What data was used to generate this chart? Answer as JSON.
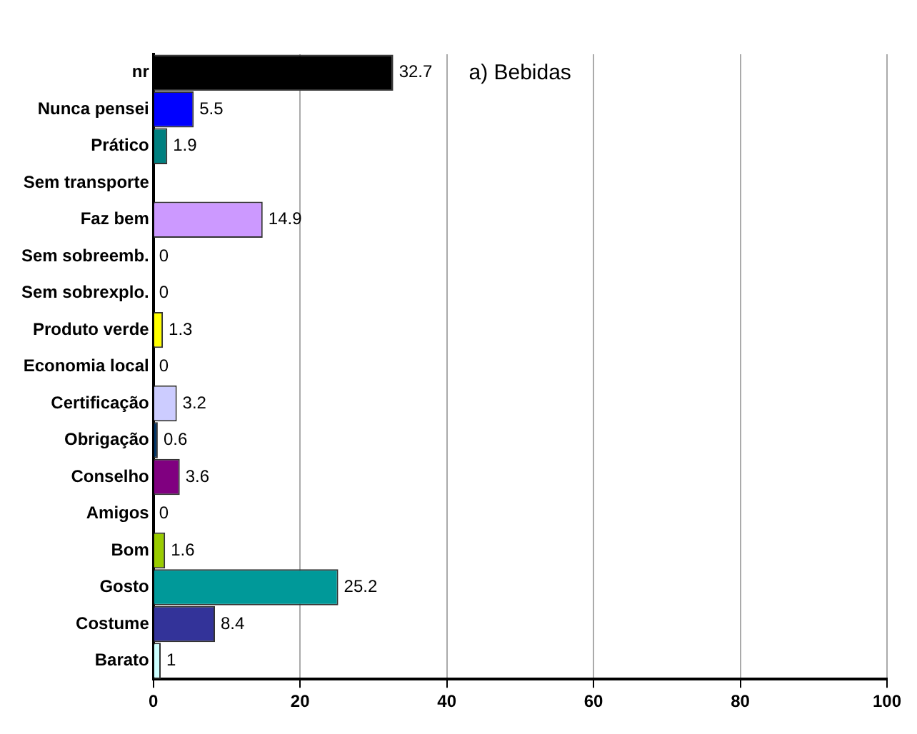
{
  "chart_data": {
    "type": "bar",
    "orientation": "horizontal",
    "title": "a) Bebidas",
    "categories": [
      "nr",
      "Nunca pensei",
      "Prático",
      "Sem transporte",
      "Faz bem",
      "Sem sobreemb.",
      "Sem sobrexplo.",
      "Produto verde",
      "Economia local",
      "Certificação",
      "Obrigação",
      "Conselho",
      "Amigos",
      "Bom",
      "Gosto",
      "Costume",
      "Barato"
    ],
    "values": [
      32.7,
      5.5,
      1.9,
      null,
      14.9,
      0,
      0,
      1.3,
      0,
      3.2,
      0.6,
      3.6,
      0,
      1.6,
      25.2,
      8.4,
      1
    ],
    "value_labels": [
      "32.7",
      "5.5",
      "1.9",
      null,
      "14.9",
      "0",
      "0",
      "1.3",
      "0",
      "3.2",
      "0.6",
      "3.6",
      "0",
      "1.6",
      "25.2",
      "8.4",
      "1"
    ],
    "colors": [
      "#000000",
      "#0000ff",
      "#008080",
      "#ffffff",
      "#cc99ff",
      "#ffffff",
      "#ffffff",
      "#ffff00",
      "#ffffff",
      "#ccccff",
      "#003366",
      "#800080",
      "#ffffff",
      "#99cc00",
      "#009999",
      "#333399",
      "#ccffff"
    ],
    "xlim": [
      0,
      100
    ],
    "xticks": [
      0,
      20,
      40,
      60,
      80,
      100
    ],
    "grid": "x",
    "legend": false
  }
}
